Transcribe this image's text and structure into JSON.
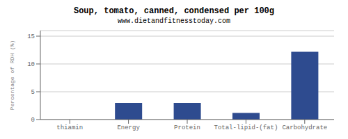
{
  "chart_data": {
    "type": "bar",
    "title": "Soup, tomato, canned, condensed per 100g",
    "subtitle": "www.dietandfitnesstoday.com",
    "categories": [
      "thiamin",
      "Energy",
      "Protein",
      "Total-lipid-(fat)",
      "Carbohydrate"
    ],
    "values": [
      0.0,
      3.0,
      3.0,
      1.2,
      12.2
    ],
    "color": "#2e4b8f",
    "ylabel": "Percentage of RDH (%)",
    "ylim": [
      0,
      16
    ],
    "yticks": [
      0,
      5,
      10,
      15
    ],
    "grid": true
  }
}
